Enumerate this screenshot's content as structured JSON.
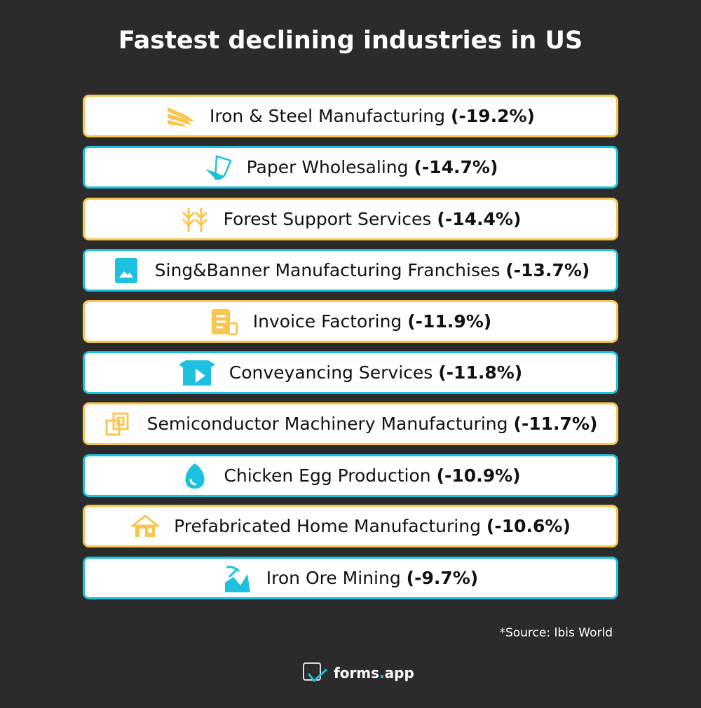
{
  "title": "Fastest declining industries in US",
  "colors": {
    "yellow": "#f8c54f",
    "cyan": "#1ec0e0",
    "background": "#2b2b2b"
  },
  "items": [
    {
      "name": "Iron & Steel Manufacturing",
      "value": "(-19.2%)",
      "icon": "steel-beams-icon"
    },
    {
      "name": "Paper Wholesaling",
      "value": "(-14.7%)",
      "icon": "paper-icon"
    },
    {
      "name": "Forest Support Services",
      "value": "(-14.4%)",
      "icon": "trees-icon"
    },
    {
      "name": "Sing&Banner Manufacturing Franchises",
      "value": "(-13.7%)",
      "icon": "banner-image-icon"
    },
    {
      "name": "Invoice Factoring",
      "value": "(-11.9%)",
      "icon": "invoice-icon"
    },
    {
      "name": "Conveyancing Services",
      "value": "(-11.8%)",
      "icon": "box-icon"
    },
    {
      "name": "Semiconductor Machinery Manufacturing",
      "value": "(-11.7%)",
      "icon": "chip-icon"
    },
    {
      "name": "Chicken Egg Production",
      "value": "(-10.9%)",
      "icon": "egg-icon"
    },
    {
      "name": "Prefabricated Home Manufacturing",
      "value": "(-10.6%)",
      "icon": "house-icon"
    },
    {
      "name": "Iron Ore Mining",
      "value": "(-9.7%)",
      "icon": "pickaxe-mining-icon"
    }
  ],
  "source": "*Source: Ibis World",
  "logo": {
    "name": "forms",
    "dot": ".",
    "suffix": "app"
  }
}
